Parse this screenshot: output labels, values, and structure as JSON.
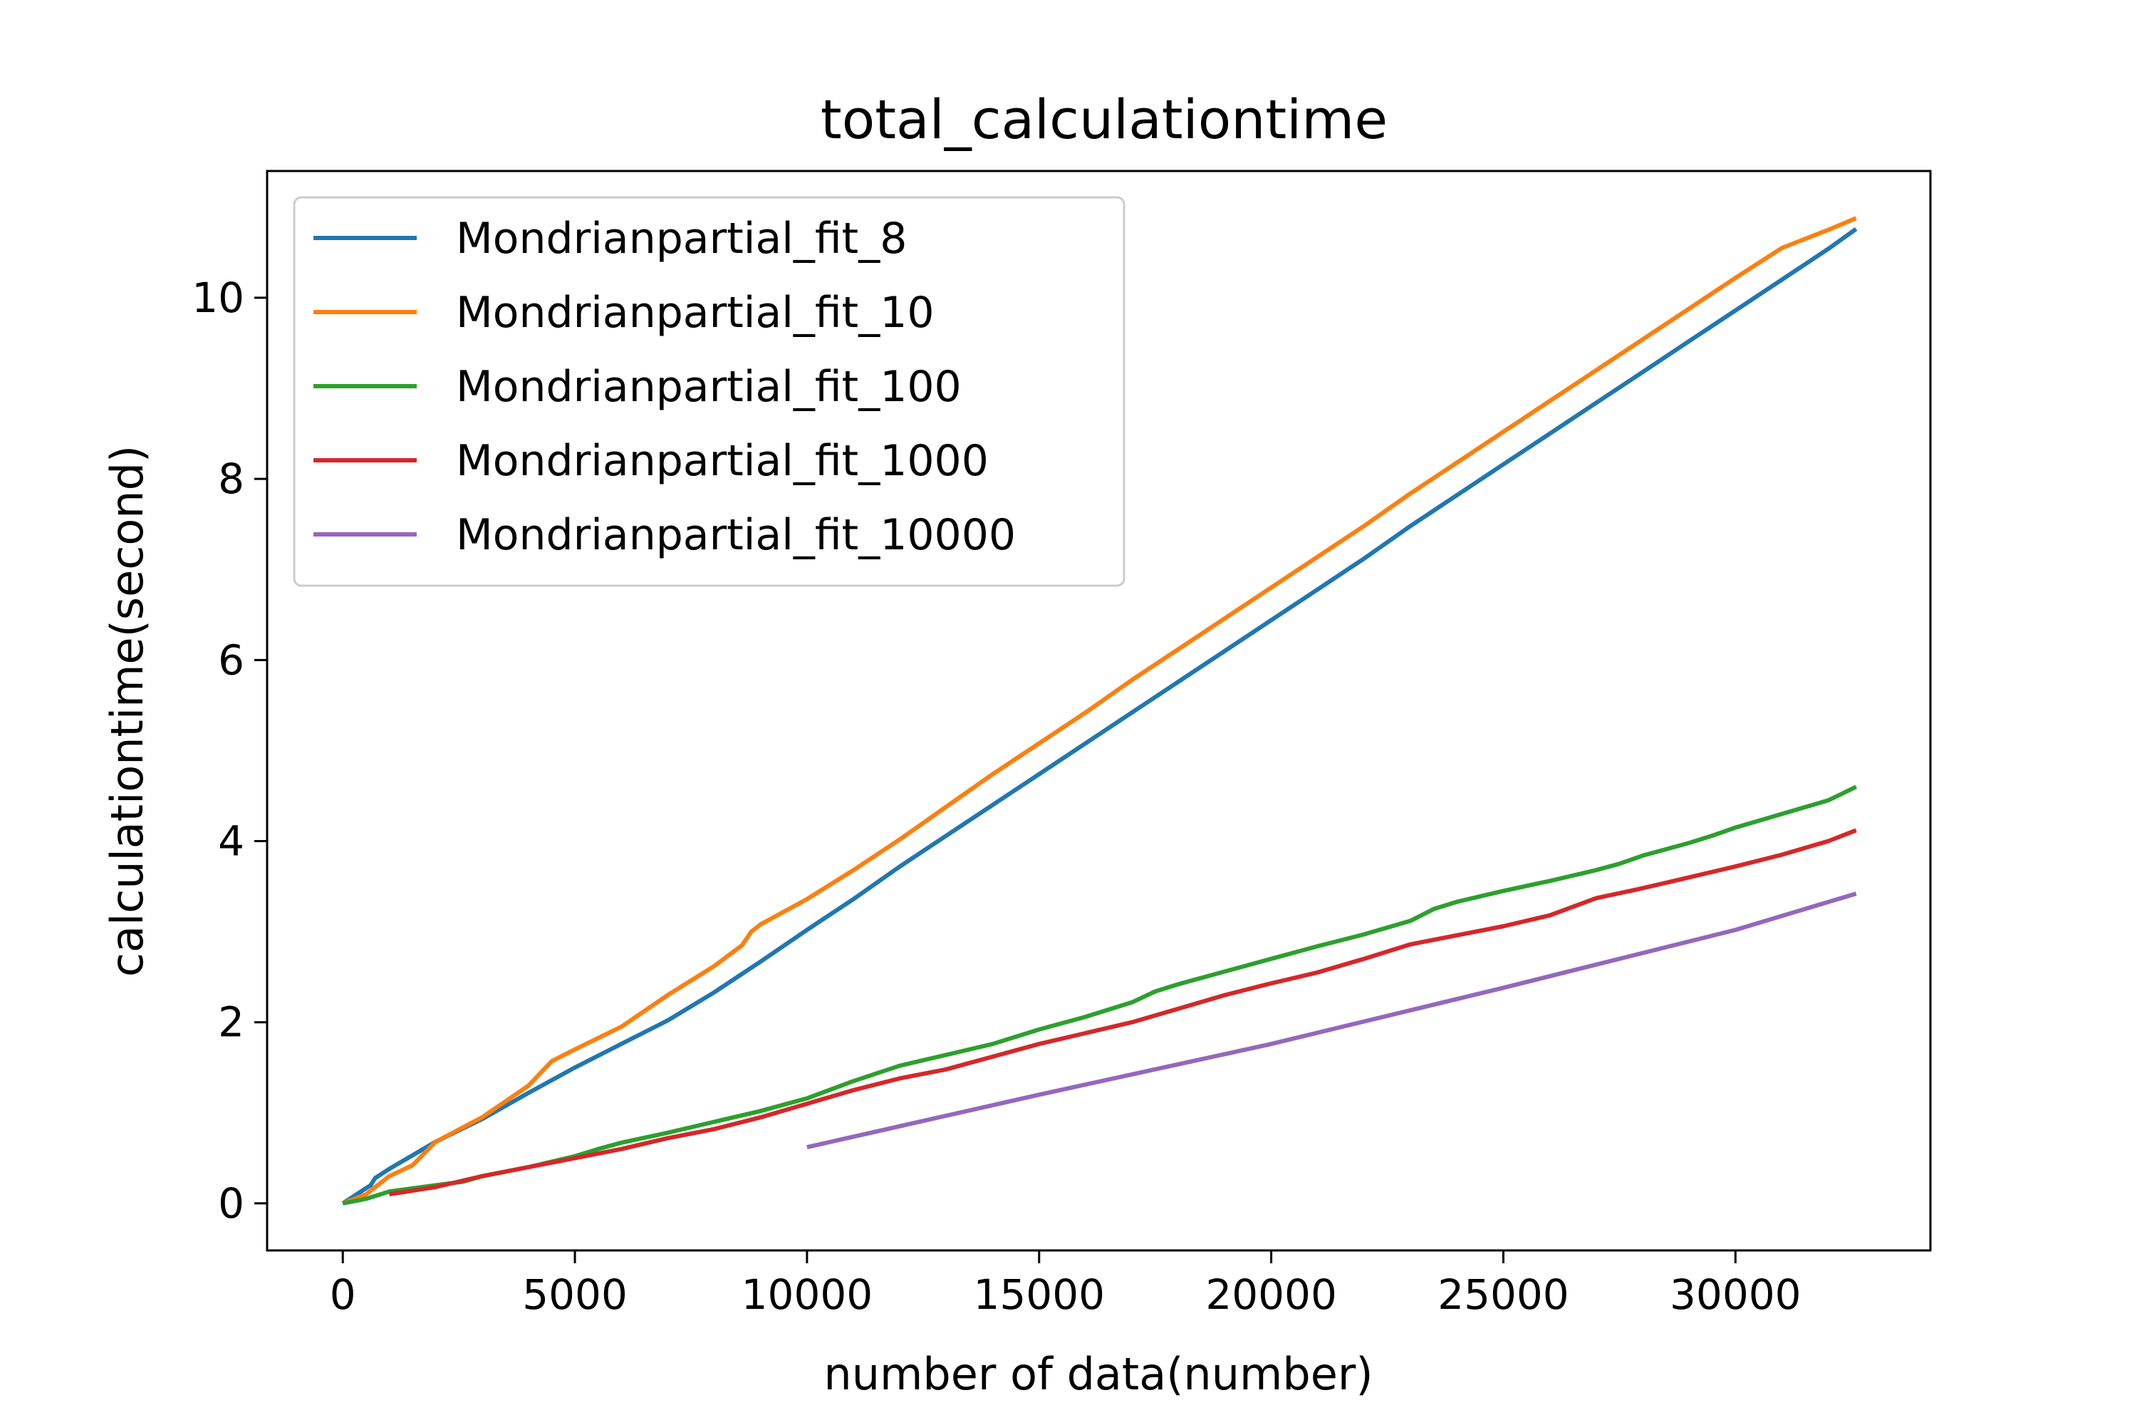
{
  "chart_data": {
    "type": "line",
    "title": "total_calculationtime",
    "xlabel": "number of data(number)",
    "ylabel": "calculationtime(second)",
    "xlim": [
      -1630,
      34200
    ],
    "ylim": [
      -0.52,
      11.4
    ],
    "xticks": [
      0,
      5000,
      10000,
      15000,
      20000,
      25000,
      30000
    ],
    "yticks": [
      0,
      2,
      4,
      6,
      8,
      10
    ],
    "grid": false,
    "legend_position": "top-left",
    "series": [
      {
        "name": "Mondrianpartial_fit_8",
        "color": "#1f77b4",
        "points": [
          [
            0,
            0
          ],
          [
            300,
            0.1
          ],
          [
            600,
            0.2
          ],
          [
            700,
            0.28
          ],
          [
            1000,
            0.38
          ],
          [
            2000,
            0.68
          ],
          [
            3000,
            0.93
          ],
          [
            4000,
            1.22
          ],
          [
            5000,
            1.5
          ],
          [
            6000,
            1.76
          ],
          [
            7000,
            2.02
          ],
          [
            8000,
            2.33
          ],
          [
            9000,
            2.67
          ],
          [
            10000,
            3.02
          ],
          [
            11000,
            3.36
          ],
          [
            12000,
            3.72
          ],
          [
            13000,
            4.06
          ],
          [
            14000,
            4.4
          ],
          [
            15000,
            4.74
          ],
          [
            16000,
            5.08
          ],
          [
            17000,
            5.42
          ],
          [
            18000,
            5.76
          ],
          [
            19000,
            6.1
          ],
          [
            20000,
            6.44
          ],
          [
            21000,
            6.78
          ],
          [
            22000,
            7.12
          ],
          [
            23000,
            7.48
          ],
          [
            24000,
            7.82
          ],
          [
            25000,
            8.16
          ],
          [
            26000,
            8.5
          ],
          [
            27000,
            8.84
          ],
          [
            28000,
            9.18
          ],
          [
            29000,
            9.52
          ],
          [
            30000,
            9.86
          ],
          [
            31000,
            10.2
          ],
          [
            32000,
            10.54
          ],
          [
            32600,
            10.76
          ]
        ]
      },
      {
        "name": "Mondrianpartial_fit_10",
        "color": "#ff7f0e",
        "points": [
          [
            0,
            0
          ],
          [
            500,
            0.1
          ],
          [
            1000,
            0.3
          ],
          [
            1500,
            0.42
          ],
          [
            2000,
            0.68
          ],
          [
            3000,
            0.95
          ],
          [
            4000,
            1.3
          ],
          [
            4500,
            1.57
          ],
          [
            5000,
            1.7
          ],
          [
            6000,
            1.95
          ],
          [
            7000,
            2.3
          ],
          [
            8000,
            2.62
          ],
          [
            8600,
            2.85
          ],
          [
            8800,
            3.0
          ],
          [
            9000,
            3.08
          ],
          [
            10000,
            3.36
          ],
          [
            11000,
            3.68
          ],
          [
            12000,
            4.02
          ],
          [
            13000,
            4.38
          ],
          [
            14000,
            4.74
          ],
          [
            15000,
            5.08
          ],
          [
            16000,
            5.42
          ],
          [
            17000,
            5.78
          ],
          [
            18000,
            6.12
          ],
          [
            19000,
            6.46
          ],
          [
            20000,
            6.8
          ],
          [
            21000,
            7.14
          ],
          [
            22000,
            7.48
          ],
          [
            23000,
            7.84
          ],
          [
            24000,
            8.18
          ],
          [
            25000,
            8.52
          ],
          [
            26000,
            8.86
          ],
          [
            27000,
            9.2
          ],
          [
            28000,
            9.54
          ],
          [
            29000,
            9.88
          ],
          [
            30000,
            10.22
          ],
          [
            31000,
            10.55
          ],
          [
            32000,
            10.75
          ],
          [
            32600,
            10.88
          ]
        ]
      },
      {
        "name": "Mondrianpartial_fit_100",
        "color": "#2ca02c",
        "points": [
          [
            0,
            0
          ],
          [
            500,
            0.05
          ],
          [
            1000,
            0.13
          ],
          [
            2000,
            0.2
          ],
          [
            2600,
            0.24
          ],
          [
            3000,
            0.3
          ],
          [
            4000,
            0.4
          ],
          [
            5000,
            0.52
          ],
          [
            5500,
            0.6
          ],
          [
            6000,
            0.67
          ],
          [
            7000,
            0.78
          ],
          [
            8000,
            0.9
          ],
          [
            9000,
            1.02
          ],
          [
            10000,
            1.16
          ],
          [
            11000,
            1.35
          ],
          [
            12000,
            1.52
          ],
          [
            13000,
            1.64
          ],
          [
            14000,
            1.76
          ],
          [
            15000,
            1.92
          ],
          [
            16000,
            2.06
          ],
          [
            17000,
            2.22
          ],
          [
            17500,
            2.34
          ],
          [
            18000,
            2.42
          ],
          [
            19000,
            2.56
          ],
          [
            20000,
            2.7
          ],
          [
            21000,
            2.84
          ],
          [
            22000,
            2.97
          ],
          [
            23000,
            3.12
          ],
          [
            23500,
            3.25
          ],
          [
            24000,
            3.33
          ],
          [
            25000,
            3.45
          ],
          [
            26000,
            3.56
          ],
          [
            27000,
            3.68
          ],
          [
            27500,
            3.75
          ],
          [
            28000,
            3.84
          ],
          [
            29000,
            3.98
          ],
          [
            29500,
            4.06
          ],
          [
            30000,
            4.15
          ],
          [
            31000,
            4.3
          ],
          [
            32000,
            4.45
          ],
          [
            32600,
            4.6
          ]
        ]
      },
      {
        "name": "Mondrianpartial_fit_1000",
        "color": "#d62728",
        "points": [
          [
            1000,
            0.1
          ],
          [
            2000,
            0.18
          ],
          [
            3000,
            0.3
          ],
          [
            4000,
            0.4
          ],
          [
            5000,
            0.5
          ],
          [
            6000,
            0.6
          ],
          [
            7000,
            0.72
          ],
          [
            8000,
            0.82
          ],
          [
            9000,
            0.95
          ],
          [
            10000,
            1.1
          ],
          [
            11000,
            1.25
          ],
          [
            12000,
            1.38
          ],
          [
            13000,
            1.48
          ],
          [
            14000,
            1.62
          ],
          [
            15000,
            1.76
          ],
          [
            16000,
            1.88
          ],
          [
            17000,
            2.0
          ],
          [
            18000,
            2.15
          ],
          [
            19000,
            2.3
          ],
          [
            20000,
            2.43
          ],
          [
            21000,
            2.55
          ],
          [
            22000,
            2.7
          ],
          [
            23000,
            2.86
          ],
          [
            24000,
            2.96
          ],
          [
            25000,
            3.06
          ],
          [
            26000,
            3.18
          ],
          [
            27000,
            3.37
          ],
          [
            28000,
            3.48
          ],
          [
            29000,
            3.6
          ],
          [
            30000,
            3.72
          ],
          [
            31000,
            3.85
          ],
          [
            32000,
            4.0
          ],
          [
            32600,
            4.12
          ]
        ]
      },
      {
        "name": "Mondrianpartial_fit_10000",
        "color": "#9467bd",
        "points": [
          [
            10000,
            0.62
          ],
          [
            15000,
            1.2
          ],
          [
            20000,
            1.76
          ],
          [
            25000,
            2.38
          ],
          [
            30000,
            3.02
          ],
          [
            32600,
            3.42
          ]
        ]
      }
    ]
  }
}
